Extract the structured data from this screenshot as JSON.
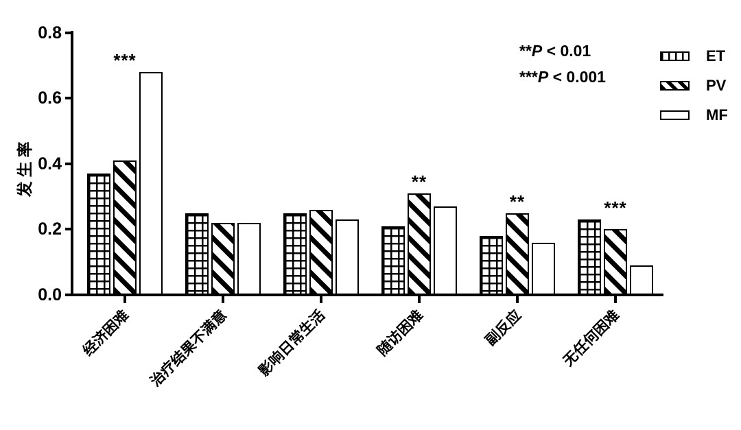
{
  "chart_data": {
    "type": "bar",
    "title": "",
    "xlabel": "",
    "ylabel": "发生率",
    "ylim": [
      0,
      0.8
    ],
    "yticks": [
      0.0,
      0.2,
      0.4,
      0.6,
      0.8
    ],
    "ytick_labels": [
      "0.0",
      "0.2",
      "0.4",
      "0.6",
      "0.8"
    ],
    "grid": false,
    "legend_position": "top-right",
    "categories": [
      "经济困难",
      "治疗结果不满意",
      "影响日常生活",
      "随访困难",
      "副反应",
      "无任何困难"
    ],
    "series": [
      {
        "name": "ET",
        "pattern": "grid",
        "values": [
          0.37,
          0.25,
          0.25,
          0.21,
          0.18,
          0.23
        ]
      },
      {
        "name": "PV",
        "pattern": "stripes",
        "values": [
          0.41,
          0.22,
          0.26,
          0.31,
          0.25,
          0.2
        ]
      },
      {
        "name": "MF",
        "pattern": "plain",
        "values": [
          0.68,
          0.22,
          0.23,
          0.27,
          0.16,
          0.09
        ]
      }
    ],
    "significance": [
      {
        "category_index": 0,
        "label": "***"
      },
      {
        "category_index": 3,
        "label": "**"
      },
      {
        "category_index": 4,
        "label": "**"
      },
      {
        "category_index": 5,
        "label": "***"
      }
    ],
    "annotations": [
      {
        "stars": "**",
        "p": "P",
        "rest": " < 0.01"
      },
      {
        "stars": "***",
        "p": "P",
        "rest": " < 0.001"
      }
    ],
    "colors": {
      "foreground": "#000000",
      "background": "#ffffff"
    }
  }
}
